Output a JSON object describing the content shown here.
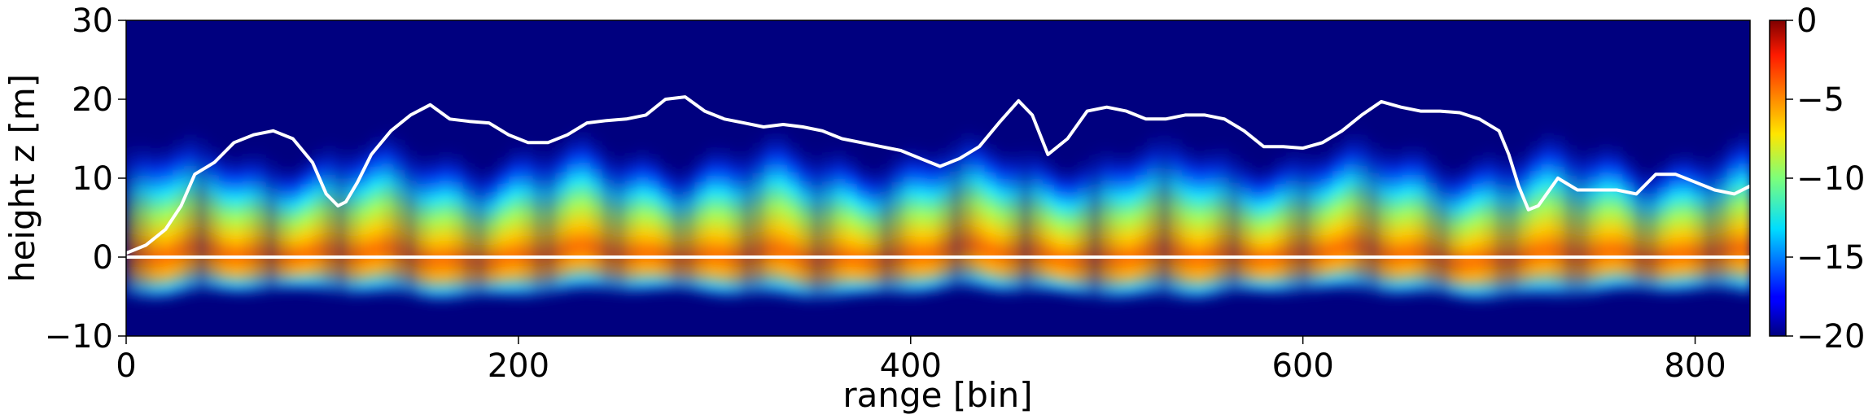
{
  "chart_data": {
    "type": "heatmap",
    "title": "",
    "xlabel": "range [bin]",
    "ylabel": "height z [m]",
    "xlim": [
      0,
      828
    ],
    "ylim": [
      -10,
      30
    ],
    "x_ticks": [
      0,
      200,
      400,
      600,
      800
    ],
    "x_tick_labels": [
      "0",
      "200",
      "400",
      "600",
      "800"
    ],
    "y_ticks": [
      -10,
      0,
      10,
      20,
      30
    ],
    "y_tick_labels": [
      "−10",
      "0",
      "10",
      "20",
      "30"
    ],
    "colormap": "jet",
    "colorbar": {
      "range": [
        -20,
        0
      ],
      "ticks": [
        0,
        -5,
        -10,
        -15,
        -20
      ],
      "tick_labels": [
        "0",
        "−5",
        "−10",
        "−15",
        "−20"
      ]
    },
    "reference_line": {
      "y": 0,
      "color": "#ffffff"
    },
    "grid": false,
    "series": [
      {
        "color": "#ffffff",
        "x": [
          0,
          10,
          20,
          28,
          35,
          45,
          55,
          65,
          75,
          85,
          95,
          102,
          108,
          112,
          118,
          125,
          135,
          145,
          155,
          165,
          175,
          185,
          195,
          205,
          215,
          225,
          235,
          245,
          255,
          265,
          275,
          285,
          295,
          305,
          315,
          325,
          335,
          345,
          355,
          365,
          375,
          385,
          395,
          405,
          415,
          425,
          435,
          445,
          455,
          462,
          470,
          480,
          490,
          500,
          510,
          520,
          530,
          540,
          550,
          560,
          570,
          580,
          590,
          600,
          610,
          620,
          630,
          640,
          650,
          660,
          670,
          680,
          690,
          700,
          705,
          710,
          715,
          720,
          730,
          740,
          750,
          760,
          770,
          780,
          790,
          800,
          810,
          820,
          828
        ],
        "y": [
          0.5,
          1.5,
          3.5,
          6.5,
          10.5,
          12,
          14.5,
          15.5,
          16,
          15,
          12,
          8,
          6.5,
          7,
          9.5,
          13,
          16,
          18,
          19.3,
          17.5,
          17.2,
          17,
          15.5,
          14.5,
          14.5,
          15.5,
          17,
          17.3,
          17.5,
          18,
          20,
          20.3,
          18.5,
          17.5,
          17,
          16.5,
          16.8,
          16.5,
          16,
          15,
          14.5,
          14,
          13.5,
          12.5,
          11.5,
          12.5,
          14,
          17,
          19.8,
          18,
          13,
          15,
          18.5,
          19,
          18.5,
          17.5,
          17.5,
          18,
          18,
          17.5,
          16,
          14,
          14,
          13.8,
          14.5,
          16,
          18,
          19.7,
          19,
          18.5,
          18.5,
          18.3,
          17.5,
          16,
          13,
          9,
          6,
          6.5,
          10,
          8.5,
          8.5,
          8.5,
          8,
          10.5,
          10.5,
          9.5,
          8.5,
          8,
          9
        ]
      }
    ]
  }
}
